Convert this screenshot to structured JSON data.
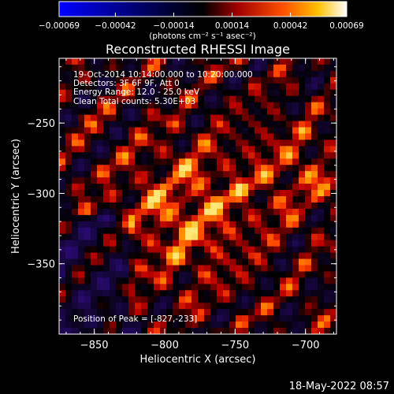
{
  "chart_data": {
    "type": "heatmap",
    "title": "Reconstructed RHESSI Image",
    "xlabel": "Heliocentric X (arcsec)",
    "ylabel": "Heliocentric Y (arcsec)",
    "xlim": [
      -875,
      -678
    ],
    "ylim": [
      -400,
      -204
    ],
    "x_ticks": [
      -850,
      -800,
      -750,
      -700
    ],
    "y_ticks": [
      -250,
      -300,
      -350
    ],
    "x_tick_labels": [
      "−850",
      "−800",
      "−750",
      "−700"
    ],
    "y_tick_labels": [
      "−250",
      "−300",
      "−350"
    ],
    "colorbar": {
      "min": -0.00069,
      "max": 0.00069,
      "ticks": [
        -0.00069,
        -0.00042,
        -0.00014,
        0.00014,
        0.00042,
        0.00069
      ],
      "tick_labels": [
        "−0.00069",
        "−0.00042",
        "−0.00014",
        "0.00014",
        "0.00042",
        "0.00069"
      ],
      "units": "(photons cm⁻² s⁻¹ asec⁻²)"
    },
    "annotations": [
      "19-Oct-2014 10:14:00.000 to 10:20:00.000",
      "Detectors: 3F 6F 9F, Att 0",
      "Energy Range: 12.0 - 25.0 keV",
      "Clean    Total counts: 5.30E+03"
    ],
    "peak_label": "Position of Peak = [-827,-233]",
    "peak": {
      "x": -827,
      "y": -233
    }
  },
  "footer": "18-May-2022 08:57"
}
